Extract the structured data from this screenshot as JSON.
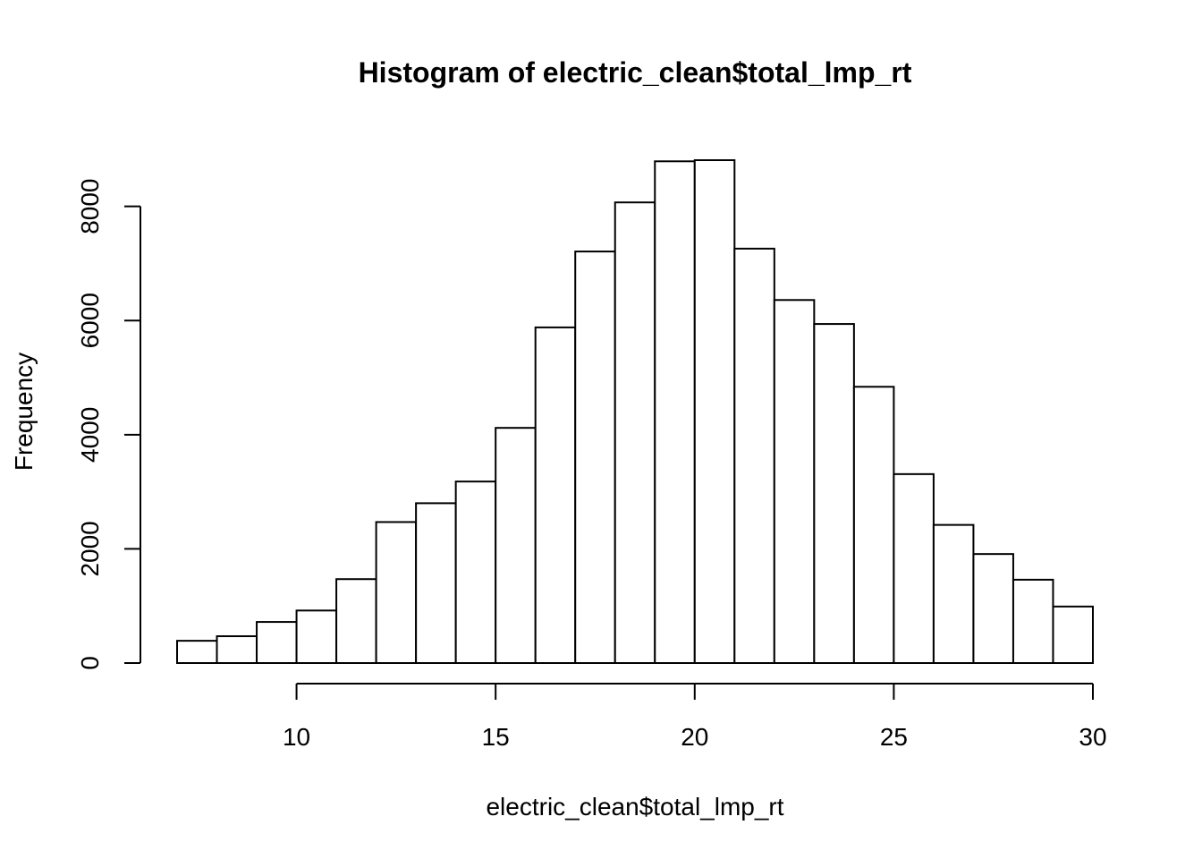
{
  "chart_data": {
    "type": "bar",
    "title": "Histogram of electric_clean$total_lmp_rt",
    "xlabel": "electric_clean$total_lmp_rt",
    "ylabel": "Frequency",
    "bin_edges": [
      7,
      8,
      9,
      10,
      11,
      12,
      13,
      14,
      15,
      16,
      17,
      18,
      19,
      20,
      21,
      22,
      23,
      24,
      25,
      26,
      27,
      28,
      29,
      30
    ],
    "values": [
      390,
      470,
      720,
      920,
      1470,
      2470,
      2800,
      3180,
      4120,
      5880,
      7210,
      8070,
      8790,
      8810,
      7260,
      6360,
      5940,
      4840,
      3310,
      2420,
      1910,
      1460,
      990
    ],
    "x_ticks": [
      10,
      15,
      20,
      25,
      30
    ],
    "x_tick_labels": [
      "10",
      "15",
      "20",
      "25",
      "30"
    ],
    "y_ticks": [
      0,
      2000,
      4000,
      6000,
      8000
    ],
    "y_tick_labels": [
      "0",
      "2000",
      "4000",
      "6000",
      "8000"
    ],
    "xlim": [
      7,
      30
    ],
    "ylim": [
      0,
      8810
    ],
    "grid": false,
    "legend": "none",
    "bar_fill": "#ffffff",
    "bar_stroke": "#000000"
  }
}
